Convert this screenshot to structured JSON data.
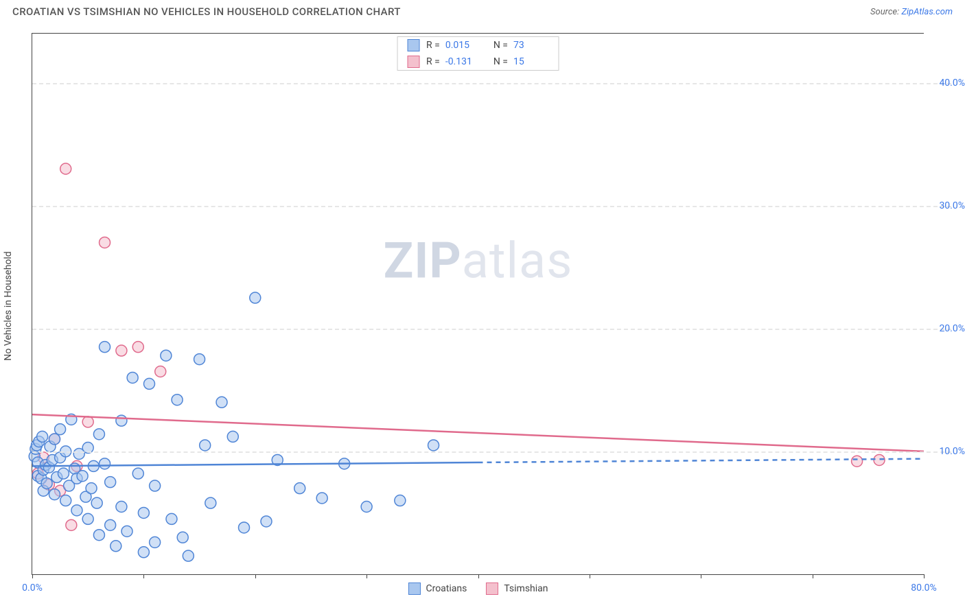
{
  "header": {
    "title": "CROATIAN VS TSIMSHIAN NO VEHICLES IN HOUSEHOLD CORRELATION CHART",
    "source_prefix": "Source: ",
    "source_link": "ZipAtlas.com"
  },
  "chart": {
    "type": "scatter",
    "y_axis_title": "No Vehicles in Household",
    "watermark_bold": "ZIP",
    "watermark_light": "atlas",
    "xlim": [
      0,
      80
    ],
    "ylim": [
      0,
      44
    ],
    "x_ticks": [
      0,
      10,
      20,
      30,
      40,
      50,
      60,
      70,
      80
    ],
    "x_tick_labels": {
      "0": "0.0%",
      "80": "80.0%"
    },
    "y_ticks": [
      10,
      20,
      30,
      40
    ],
    "y_tick_labels": {
      "10": "10.0%",
      "20": "20.0%",
      "30": "30.0%",
      "40": "40.0%"
    },
    "background_color": "#ffffff",
    "grid_color": "#e6e6e6",
    "marker_radius": 8,
    "marker_opacity": 0.55
  },
  "series": {
    "croatians": {
      "label": "Croatians",
      "fill": "#a9c7ef",
      "stroke": "#4f85d6",
      "r_value": "0.015",
      "n_value": "73",
      "trend": {
        "y_at_x0": 8.8,
        "y_at_x80": 9.4,
        "solid_until_x": 40
      },
      "points": [
        [
          0.2,
          9.6
        ],
        [
          0.3,
          10.2
        ],
        [
          0.4,
          10.5
        ],
        [
          0.5,
          9.1
        ],
        [
          0.5,
          8.0
        ],
        [
          0.6,
          10.8
        ],
        [
          0.8,
          7.8
        ],
        [
          0.9,
          11.2
        ],
        [
          1.0,
          8.5
        ],
        [
          1.0,
          6.8
        ],
        [
          1.2,
          8.9
        ],
        [
          1.3,
          7.4
        ],
        [
          1.5,
          8.7
        ],
        [
          1.6,
          10.4
        ],
        [
          1.8,
          9.3
        ],
        [
          2.0,
          11.0
        ],
        [
          2.0,
          6.5
        ],
        [
          2.2,
          7.9
        ],
        [
          2.5,
          9.5
        ],
        [
          2.5,
          11.8
        ],
        [
          2.8,
          8.2
        ],
        [
          3.0,
          10.0
        ],
        [
          3.0,
          6.0
        ],
        [
          3.3,
          7.2
        ],
        [
          3.5,
          12.6
        ],
        [
          3.8,
          8.6
        ],
        [
          4.0,
          7.8
        ],
        [
          4.0,
          5.2
        ],
        [
          4.2,
          9.8
        ],
        [
          4.5,
          8.0
        ],
        [
          4.8,
          6.3
        ],
        [
          5.0,
          10.3
        ],
        [
          5.0,
          4.5
        ],
        [
          5.3,
          7.0
        ],
        [
          5.5,
          8.8
        ],
        [
          5.8,
          5.8
        ],
        [
          6.0,
          11.4
        ],
        [
          6.0,
          3.2
        ],
        [
          6.5,
          18.5
        ],
        [
          6.5,
          9.0
        ],
        [
          7.0,
          7.5
        ],
        [
          7.0,
          4.0
        ],
        [
          7.5,
          2.3
        ],
        [
          8.0,
          12.5
        ],
        [
          8.0,
          5.5
        ],
        [
          8.5,
          3.5
        ],
        [
          9.0,
          16.0
        ],
        [
          9.5,
          8.2
        ],
        [
          10.0,
          5.0
        ],
        [
          10.0,
          1.8
        ],
        [
          10.5,
          15.5
        ],
        [
          11.0,
          7.2
        ],
        [
          11.0,
          2.6
        ],
        [
          12.0,
          17.8
        ],
        [
          12.5,
          4.5
        ],
        [
          13.0,
          14.2
        ],
        [
          13.5,
          3.0
        ],
        [
          14.0,
          1.5
        ],
        [
          15.0,
          17.5
        ],
        [
          15.5,
          10.5
        ],
        [
          16.0,
          5.8
        ],
        [
          17.0,
          14.0
        ],
        [
          18.0,
          11.2
        ],
        [
          19.0,
          3.8
        ],
        [
          20.0,
          22.5
        ],
        [
          21.0,
          4.3
        ],
        [
          22.0,
          9.3
        ],
        [
          24.0,
          7.0
        ],
        [
          26.0,
          6.2
        ],
        [
          28.0,
          9.0
        ],
        [
          30.0,
          5.5
        ],
        [
          33.0,
          6.0
        ],
        [
          36.0,
          10.5
        ]
      ]
    },
    "tsimshian": {
      "label": "Tsimshian",
      "fill": "#f4c0cd",
      "stroke": "#e06a8c",
      "r_value": "-0.131",
      "n_value": "15",
      "trend": {
        "y_at_x0": 13.0,
        "y_at_x80": 10.0,
        "solid_until_x": 80
      },
      "points": [
        [
          0.5,
          8.2
        ],
        [
          1.0,
          9.5
        ],
        [
          1.5,
          7.3
        ],
        [
          2.0,
          11.0
        ],
        [
          2.5,
          6.8
        ],
        [
          3.0,
          33.0
        ],
        [
          3.5,
          4.0
        ],
        [
          4.0,
          8.8
        ],
        [
          5.0,
          12.4
        ],
        [
          6.5,
          27.0
        ],
        [
          8.0,
          18.2
        ],
        [
          9.5,
          18.5
        ],
        [
          11.5,
          16.5
        ],
        [
          74.0,
          9.2
        ],
        [
          76.0,
          9.3
        ]
      ]
    }
  },
  "legend_top": {
    "r_label": "R =",
    "n_label": "N ="
  }
}
